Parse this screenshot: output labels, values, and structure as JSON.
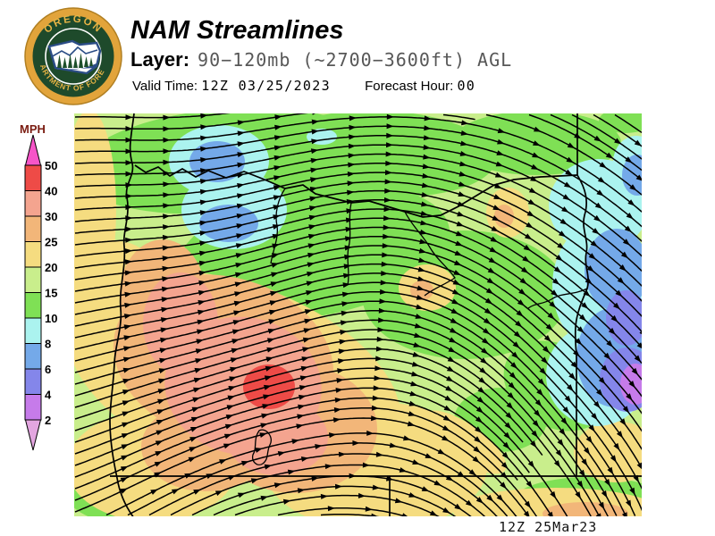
{
  "header": {
    "title": "NAM Streamlines",
    "layer_label": "Layer:",
    "layer_value": "90−120mb (~2700−3600ft) AGL",
    "valid_time_label": "Valid Time:",
    "valid_time_value": "12Z 03/25/2023",
    "forecast_hour_label": "Forecast Hour:",
    "forecast_hour_value": "00"
  },
  "logo": {
    "arc_top": "OREGON",
    "arc_bottom": "DEPARTMENT OF FORESTRY"
  },
  "legend": {
    "units_label": "MPH",
    "units_color": "#7b1d12",
    "boundary_labels": [
      "50",
      "40",
      "30",
      "25",
      "20",
      "15",
      "10",
      "8",
      "6",
      "4",
      "2"
    ],
    "band_colors": [
      "#ee4b47",
      "#f4a48f",
      "#f2b679",
      "#f5dc80",
      "#c9ee8c",
      "#7fe055",
      "#abf3ef",
      "#74a9e9",
      "#8486ea",
      "#c67bea"
    ],
    "arrow_up_color": "#f655c8",
    "arrow_down_color": "#e3a6e0"
  },
  "map": {
    "timestamp": "12Z 25Mar23",
    "base_color": "#c9ee8c",
    "streamline_color": "#000000",
    "outline_color": "#000000"
  }
}
